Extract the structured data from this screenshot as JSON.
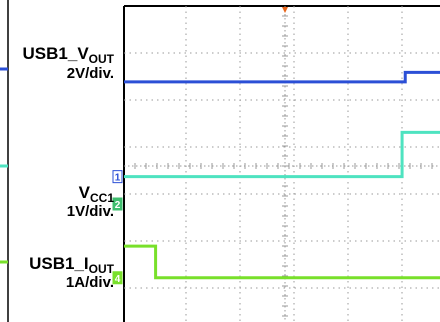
{
  "chart_data": {
    "type": "line",
    "title": "",
    "grid": true,
    "x": [
      0,
      1,
      2,
      3,
      4,
      5,
      6,
      7,
      8,
      9,
      10
    ],
    "series": [
      {
        "name_main": "USB1_V",
        "name_sub": "OUT",
        "scale": "2V/div.",
        "color": "#2b4fd6",
        "marker": "",
        "values": [
          3.8,
          3.8,
          3.8,
          3.8,
          3.8,
          3.8,
          3.8,
          3.8,
          3.8,
          3.95,
          3.95
        ],
        "step_at": 8.9
      },
      {
        "name_main": "V",
        "name_sub": "CC1",
        "scale": "1V/div.",
        "color": "#4ee3c0",
        "marker": "1",
        "values": [
          2.3,
          2.3,
          2.3,
          2.3,
          2.3,
          2.3,
          2.3,
          2.3,
          2.3,
          3.0,
          3.0
        ],
        "step_at": 8.8
      },
      {
        "name_main": "USB1_I",
        "name_sub": "OUT",
        "scale": "1A/div.",
        "color": "#78e02a",
        "marker": "4",
        "values": [
          1.2,
          1.2,
          0.7,
          0.7,
          0.7,
          0.7,
          0.7,
          0.7,
          0.7,
          0.7,
          0.7
        ],
        "step_at": 1.0
      }
    ],
    "side_markers": [
      "2"
    ],
    "ylim": [
      0,
      5
    ],
    "xlim": [
      0,
      10
    ]
  }
}
